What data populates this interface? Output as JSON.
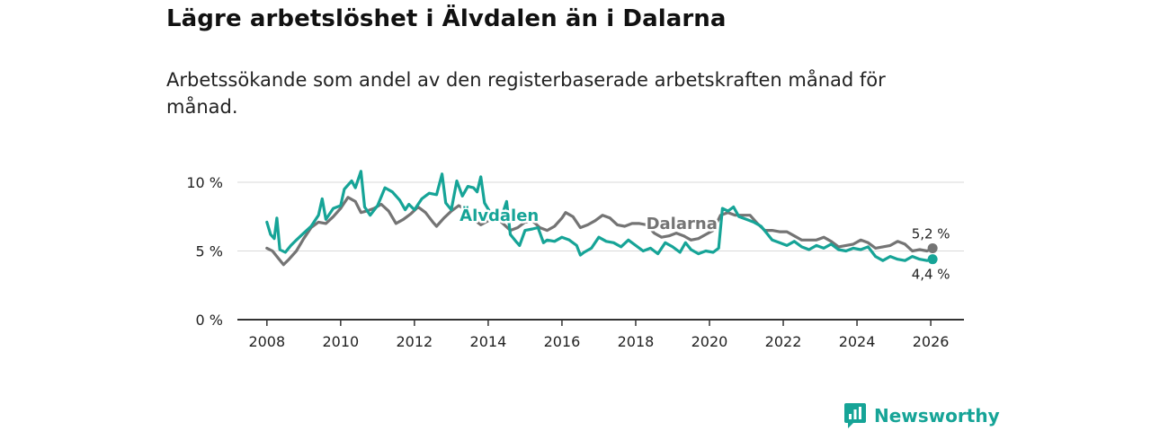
{
  "title": "Lägre arbetslöshet i Älvdalen än i Dalarna",
  "subtitle": "Arbetssökande som andel av den registerbaserade arbetskraften månad för månad.",
  "brand": {
    "name": "Newsworthy",
    "icon": "newsworthy-logo-icon",
    "color": "#16a497"
  },
  "chart_data": {
    "type": "line",
    "xlim": [
      2007.2,
      2026.9
    ],
    "ylim": [
      0,
      10
    ],
    "y_ticks": [
      {
        "value": 0,
        "label": "0 %"
      },
      {
        "value": 5,
        "label": "5 %"
      },
      {
        "value": 10,
        "label": "10 %"
      }
    ],
    "x_ticks": [
      {
        "value": 2008,
        "label": "2008"
      },
      {
        "value": 2010,
        "label": "2010"
      },
      {
        "value": 2012,
        "label": "2012"
      },
      {
        "value": 2014,
        "label": "2014"
      },
      {
        "value": 2016,
        "label": "2016"
      },
      {
        "value": 2018,
        "label": "2018"
      },
      {
        "value": 2020,
        "label": "2020"
      },
      {
        "value": 2022,
        "label": "2022"
      },
      {
        "value": 2024,
        "label": "2024"
      },
      {
        "value": 2026,
        "label": "2026"
      }
    ],
    "series": [
      {
        "name": "Dalarna",
        "color": "#747474",
        "end_label": "5,2 %",
        "points": [
          [
            2008.0,
            5.2
          ],
          [
            2008.15,
            5.0
          ],
          [
            2008.3,
            4.5
          ],
          [
            2008.45,
            4.0
          ],
          [
            2008.6,
            4.4
          ],
          [
            2008.8,
            5.0
          ],
          [
            2009.0,
            5.9
          ],
          [
            2009.2,
            6.7
          ],
          [
            2009.4,
            7.1
          ],
          [
            2009.6,
            7.0
          ],
          [
            2009.8,
            7.5
          ],
          [
            2010.0,
            8.1
          ],
          [
            2010.2,
            8.9
          ],
          [
            2010.4,
            8.6
          ],
          [
            2010.55,
            7.8
          ],
          [
            2010.7,
            7.9
          ],
          [
            2010.9,
            8.1
          ],
          [
            2011.1,
            8.4
          ],
          [
            2011.3,
            7.9
          ],
          [
            2011.5,
            7.0
          ],
          [
            2011.7,
            7.3
          ],
          [
            2011.9,
            7.7
          ],
          [
            2012.1,
            8.2
          ],
          [
            2012.3,
            7.8
          ],
          [
            2012.5,
            7.1
          ],
          [
            2012.6,
            6.8
          ],
          [
            2012.8,
            7.4
          ],
          [
            2013.0,
            7.9
          ],
          [
            2013.2,
            8.3
          ],
          [
            2013.4,
            8.0
          ],
          [
            2013.6,
            7.3
          ],
          [
            2013.8,
            6.9
          ],
          [
            2014.0,
            7.2
          ],
          [
            2014.2,
            7.5
          ],
          [
            2014.4,
            7.0
          ],
          [
            2014.6,
            6.5
          ],
          [
            2014.8,
            6.7
          ],
          [
            2015.0,
            7.1
          ],
          [
            2015.2,
            7.2
          ],
          [
            2015.4,
            6.7
          ],
          [
            2015.6,
            6.5
          ],
          [
            2015.8,
            6.8
          ],
          [
            2016.0,
            7.4
          ],
          [
            2016.1,
            7.8
          ],
          [
            2016.3,
            7.5
          ],
          [
            2016.5,
            6.7
          ],
          [
            2016.7,
            6.9
          ],
          [
            2016.9,
            7.2
          ],
          [
            2017.1,
            7.6
          ],
          [
            2017.3,
            7.4
          ],
          [
            2017.5,
            6.9
          ],
          [
            2017.7,
            6.8
          ],
          [
            2017.9,
            7.0
          ],
          [
            2018.1,
            7.0
          ],
          [
            2018.3,
            6.9
          ],
          [
            2018.5,
            6.3
          ],
          [
            2018.7,
            6.0
          ],
          [
            2018.9,
            6.1
          ],
          [
            2019.1,
            6.3
          ],
          [
            2019.3,
            6.1
          ],
          [
            2019.5,
            5.8
          ],
          [
            2019.7,
            5.9
          ],
          [
            2019.9,
            6.2
          ],
          [
            2020.1,
            6.5
          ],
          [
            2020.3,
            7.6
          ],
          [
            2020.5,
            7.8
          ],
          [
            2020.7,
            7.6
          ],
          [
            2020.9,
            7.6
          ],
          [
            2021.1,
            7.6
          ],
          [
            2021.3,
            7.0
          ],
          [
            2021.5,
            6.5
          ],
          [
            2021.7,
            6.5
          ],
          [
            2021.9,
            6.4
          ],
          [
            2022.1,
            6.4
          ],
          [
            2022.3,
            6.1
          ],
          [
            2022.5,
            5.8
          ],
          [
            2022.7,
            5.8
          ],
          [
            2022.9,
            5.8
          ],
          [
            2023.1,
            6.0
          ],
          [
            2023.3,
            5.7
          ],
          [
            2023.5,
            5.3
          ],
          [
            2023.7,
            5.4
          ],
          [
            2023.9,
            5.5
          ],
          [
            2024.1,
            5.8
          ],
          [
            2024.3,
            5.6
          ],
          [
            2024.5,
            5.2
          ],
          [
            2024.7,
            5.3
          ],
          [
            2024.9,
            5.4
          ],
          [
            2025.1,
            5.7
          ],
          [
            2025.3,
            5.5
          ],
          [
            2025.5,
            5.0
          ],
          [
            2025.7,
            5.1
          ],
          [
            2025.9,
            5.0
          ],
          [
            2026.05,
            5.2
          ]
        ]
      },
      {
        "name": "Älvdalen",
        "color": "#16a497",
        "end_label": "4,4 %",
        "points": [
          [
            2008.0,
            7.1
          ],
          [
            2008.1,
            6.2
          ],
          [
            2008.2,
            5.9
          ],
          [
            2008.27,
            7.4
          ],
          [
            2008.35,
            5.1
          ],
          [
            2008.5,
            4.9
          ],
          [
            2008.65,
            5.4
          ],
          [
            2008.8,
            5.8
          ],
          [
            2009.0,
            6.3
          ],
          [
            2009.2,
            6.8
          ],
          [
            2009.4,
            7.6
          ],
          [
            2009.5,
            8.8
          ],
          [
            2009.6,
            7.3
          ],
          [
            2009.8,
            8.1
          ],
          [
            2010.0,
            8.3
          ],
          [
            2010.1,
            9.5
          ],
          [
            2010.3,
            10.1
          ],
          [
            2010.4,
            9.6
          ],
          [
            2010.55,
            10.8
          ],
          [
            2010.65,
            8.2
          ],
          [
            2010.8,
            7.6
          ],
          [
            2011.0,
            8.3
          ],
          [
            2011.2,
            9.6
          ],
          [
            2011.4,
            9.3
          ],
          [
            2011.6,
            8.7
          ],
          [
            2011.75,
            8.0
          ],
          [
            2011.85,
            8.4
          ],
          [
            2012.0,
            8.0
          ],
          [
            2012.2,
            8.8
          ],
          [
            2012.4,
            9.2
          ],
          [
            2012.6,
            9.1
          ],
          [
            2012.75,
            10.6
          ],
          [
            2012.85,
            8.5
          ],
          [
            2013.0,
            8.0
          ],
          [
            2013.15,
            10.1
          ],
          [
            2013.3,
            9.0
          ],
          [
            2013.45,
            9.7
          ],
          [
            2013.6,
            9.6
          ],
          [
            2013.7,
            9.3
          ],
          [
            2013.8,
            10.4
          ],
          [
            2013.9,
            8.5
          ],
          [
            2014.1,
            7.6
          ],
          [
            2014.25,
            8.0
          ],
          [
            2014.35,
            7.4
          ],
          [
            2014.5,
            8.6
          ],
          [
            2014.6,
            6.2
          ],
          [
            2014.75,
            5.7
          ],
          [
            2014.85,
            5.4
          ],
          [
            2015.0,
            6.5
          ],
          [
            2015.2,
            6.6
          ],
          [
            2015.35,
            6.7
          ],
          [
            2015.5,
            5.6
          ],
          [
            2015.6,
            5.8
          ],
          [
            2015.8,
            5.7
          ],
          [
            2016.0,
            6.0
          ],
          [
            2016.2,
            5.8
          ],
          [
            2016.4,
            5.4
          ],
          [
            2016.5,
            4.7
          ],
          [
            2016.6,
            4.9
          ],
          [
            2016.8,
            5.2
          ],
          [
            2017.0,
            6.0
          ],
          [
            2017.2,
            5.7
          ],
          [
            2017.4,
            5.6
          ],
          [
            2017.6,
            5.3
          ],
          [
            2017.8,
            5.8
          ],
          [
            2018.0,
            5.4
          ],
          [
            2018.2,
            5.0
          ],
          [
            2018.4,
            5.2
          ],
          [
            2018.6,
            4.8
          ],
          [
            2018.8,
            5.6
          ],
          [
            2019.0,
            5.3
          ],
          [
            2019.2,
            4.9
          ],
          [
            2019.35,
            5.6
          ],
          [
            2019.5,
            5.1
          ],
          [
            2019.7,
            4.8
          ],
          [
            2019.9,
            5.0
          ],
          [
            2020.1,
            4.9
          ],
          [
            2020.25,
            5.2
          ],
          [
            2020.35,
            8.1
          ],
          [
            2020.5,
            7.9
          ],
          [
            2020.65,
            8.2
          ],
          [
            2020.8,
            7.5
          ],
          [
            2021.0,
            7.3
          ],
          [
            2021.2,
            7.1
          ],
          [
            2021.4,
            6.8
          ],
          [
            2021.55,
            6.3
          ],
          [
            2021.7,
            5.8
          ],
          [
            2021.9,
            5.6
          ],
          [
            2022.1,
            5.4
          ],
          [
            2022.3,
            5.7
          ],
          [
            2022.5,
            5.3
          ],
          [
            2022.7,
            5.1
          ],
          [
            2022.9,
            5.4
          ],
          [
            2023.1,
            5.2
          ],
          [
            2023.3,
            5.5
          ],
          [
            2023.5,
            5.1
          ],
          [
            2023.7,
            5.0
          ],
          [
            2023.9,
            5.2
          ],
          [
            2024.1,
            5.1
          ],
          [
            2024.3,
            5.3
          ],
          [
            2024.5,
            4.6
          ],
          [
            2024.7,
            4.3
          ],
          [
            2024.9,
            4.6
          ],
          [
            2025.1,
            4.4
          ],
          [
            2025.3,
            4.3
          ],
          [
            2025.5,
            4.6
          ],
          [
            2025.7,
            4.4
          ],
          [
            2025.9,
            4.3
          ],
          [
            2026.05,
            4.4
          ]
        ]
      }
    ],
    "annotations": [
      {
        "text": "Älvdalen",
        "series": "Älvdalen",
        "x": 2014.3,
        "y": 7.2,
        "color": "#16a497"
      },
      {
        "text": "Dalarna",
        "series": "Dalarna",
        "x": 2019.25,
        "y": 6.6,
        "color": "#747474"
      }
    ]
  }
}
